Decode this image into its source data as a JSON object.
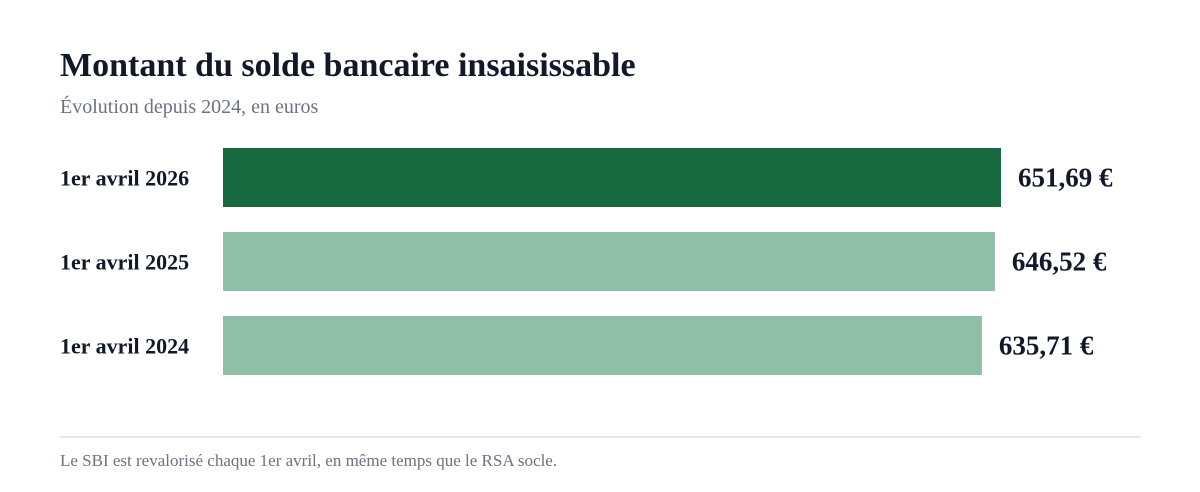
{
  "header": {
    "title": "Montant du solde bancaire insaisissable",
    "subtitle": "Évolution depuis 2024, en euros"
  },
  "footer": {
    "note": "Le SBI est revalorisé chaque 1er avril, en même temps que le RSA socle."
  },
  "colors": {
    "highlight": "#176a40",
    "muted": "#8fbfa6"
  },
  "chart_data": {
    "type": "bar",
    "orientation": "horizontal",
    "title": "Montant du solde bancaire insaisissable",
    "subtitle": "Évolution depuis 2024, en euros",
    "categories": [
      "1er avril 2026",
      "1er avril 2025",
      "1er avril 2024"
    ],
    "values": [
      651.69,
      646.52,
      635.71
    ],
    "value_labels": [
      "651,69 €",
      "646,52 €",
      "635,71 €"
    ],
    "highlight_index": 0,
    "xlim": [
      0,
      651.69
    ],
    "grid": false,
    "legend": "none"
  }
}
